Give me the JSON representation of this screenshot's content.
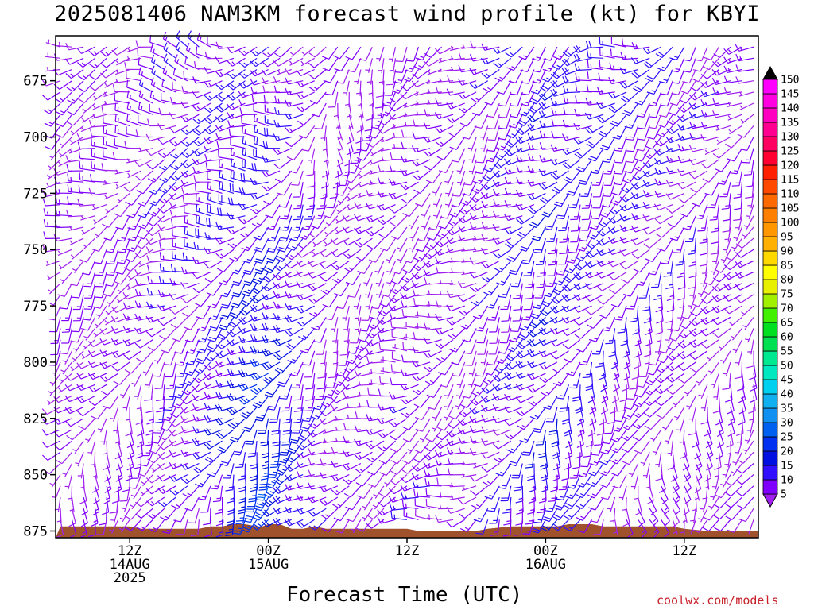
{
  "chart_data": {
    "type": "wind-barb-profile",
    "title": "2025081406 NAM3KM forecast wind profile (kt) for KBYI",
    "xlabel": "Forecast Time (UTC)",
    "ylabel": "",
    "credit": "coolwx.com/models",
    "units": "kt",
    "y_axis": {
      "inverted": true,
      "range": [
        655,
        878
      ],
      "ticks": [
        675,
        700,
        725,
        750,
        775,
        800,
        825,
        850,
        875
      ]
    },
    "x_axis": {
      "range_hours": [
        0,
        60
      ],
      "ticks": [
        {
          "hour": 6,
          "label": [
            "12Z",
            "14AUG",
            "2025"
          ]
        },
        {
          "hour": 18,
          "label": [
            "00Z",
            "15AUG"
          ]
        },
        {
          "hour": 30,
          "label": [
            "12Z"
          ]
        },
        {
          "hour": 42,
          "label": [
            "00Z",
            "16AUG"
          ]
        },
        {
          "hour": 54,
          "label": [
            "12Z"
          ]
        }
      ]
    },
    "colorbar": {
      "levels": [
        5,
        10,
        15,
        20,
        25,
        30,
        35,
        40,
        45,
        50,
        55,
        60,
        65,
        70,
        75,
        80,
        85,
        90,
        95,
        100,
        105,
        110,
        115,
        120,
        125,
        130,
        135,
        140,
        145,
        150
      ],
      "colors": [
        "#a020f0",
        "#8000ff",
        "#3010ff",
        "#0010e0",
        "#0030f0",
        "#0060f0",
        "#1090f0",
        "#10b0f0",
        "#00d0f0",
        "#00e8c0",
        "#00e890",
        "#00e050",
        "#00e020",
        "#40f000",
        "#a0f000",
        "#e8f000",
        "#ffff00",
        "#ffd800",
        "#ffb000",
        "#ff9800",
        "#ff8000",
        "#ff6a00",
        "#ff4800",
        "#ff2000",
        "#ff0030",
        "#ff0060",
        "#ff0090",
        "#ff00c0",
        "#ff00e0",
        "#ff00ff"
      ]
    },
    "terrain": {
      "color": "#a0522d",
      "surface_pressure": [
        [
          0,
          873
        ],
        [
          6,
          873
        ],
        [
          7,
          874
        ],
        [
          8,
          874
        ],
        [
          10,
          874
        ],
        [
          12,
          874
        ],
        [
          13,
          873
        ],
        [
          14,
          873
        ],
        [
          15,
          872
        ],
        [
          16,
          872
        ],
        [
          17,
          873
        ],
        [
          17.5,
          873
        ],
        [
          18,
          872
        ],
        [
          19,
          872
        ],
        [
          20,
          874
        ],
        [
          21,
          874
        ],
        [
          22,
          873
        ],
        [
          23,
          874
        ],
        [
          25,
          874
        ],
        [
          30,
          874
        ],
        [
          31,
          875
        ],
        [
          36,
          875
        ],
        [
          37,
          874
        ],
        [
          39,
          873
        ],
        [
          42,
          873
        ],
        [
          43,
          873
        ],
        [
          44,
          872
        ],
        [
          46,
          872
        ],
        [
          47,
          873
        ],
        [
          53,
          873
        ],
        [
          54,
          874
        ],
        [
          56,
          875
        ],
        [
          60,
          875
        ]
      ]
    },
    "wind_barbs": {
      "time_step_hours": 1,
      "levels": [
        660,
        665,
        670,
        675,
        680,
        685,
        690,
        695,
        700,
        705,
        710,
        715,
        720,
        725,
        730,
        735,
        740,
        745,
        750,
        755,
        760,
        765,
        770,
        775,
        780,
        785,
        790,
        795,
        800,
        805,
        810,
        815,
        820,
        825,
        830,
        835,
        840,
        845,
        850,
        855,
        860,
        865,
        870
      ],
      "phases": [
        {
          "t": 0,
          "speed_upper": 10,
          "dir_upper": 260,
          "speed_lower": 8,
          "dir_lower": 200
        },
        {
          "t": 6,
          "speed_upper": 10,
          "dir_upper": 270,
          "speed_lower": 10,
          "dir_lower": 180
        },
        {
          "t": 12,
          "speed_upper": 14,
          "dir_upper": 280,
          "speed_lower": 12,
          "dir_lower": 210
        },
        {
          "t": 18,
          "speed_upper": 12,
          "dir_upper": 270,
          "speed_lower": 28,
          "dir_lower": 200
        },
        {
          "t": 24,
          "speed_upper": 8,
          "dir_upper": 180,
          "speed_lower": 10,
          "dir_lower": 240
        },
        {
          "t": 30,
          "speed_upper": 9,
          "dir_upper": 230,
          "speed_lower": 12,
          "dir_lower": 260
        },
        {
          "t": 36,
          "speed_upper": 10,
          "dir_upper": 230,
          "speed_lower": 10,
          "dir_lower": 230
        },
        {
          "t": 42,
          "speed_upper": 16,
          "dir_upper": 240,
          "speed_lower": 18,
          "dir_lower": 200
        },
        {
          "t": 48,
          "speed_upper": 16,
          "dir_upper": 250,
          "speed_lower": 10,
          "dir_lower": 170
        },
        {
          "t": 54,
          "speed_upper": 14,
          "dir_upper": 240,
          "speed_lower": 8,
          "dir_lower": 180
        },
        {
          "t": 60,
          "speed_upper": 10,
          "dir_upper": 230,
          "speed_lower": 8,
          "dir_lower": 190
        }
      ]
    }
  }
}
